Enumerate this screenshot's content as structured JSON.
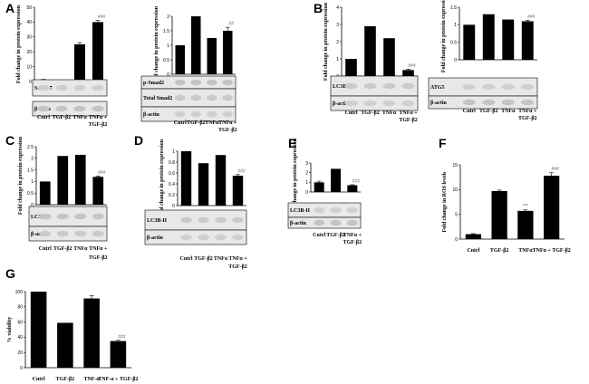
{
  "chart_data": [
    {
      "id": "A1",
      "panel_label": "A",
      "type": "bar",
      "ylabel": "Fold change in protein expression",
      "ylim": [
        0,
        50
      ],
      "yticks": [
        0,
        10,
        20,
        30,
        40,
        50
      ],
      "categories": [
        "Cntrl",
        "TGF-β2",
        "TNFα",
        "TNFα + TGF-β2"
      ],
      "values": [
        1,
        0,
        25,
        40
      ],
      "errors": [
        0.5,
        0,
        1.2,
        1.2
      ],
      "annotations": [
        "",
        "",
        "",
        "###"
      ],
      "blot_labels": [
        "Smad-7",
        "β-actin"
      ]
    },
    {
      "id": "A2",
      "panel_label": "",
      "type": "bar",
      "ylabel": "Fold change in protein expression",
      "ylim": [
        0,
        2
      ],
      "yticks": [
        0,
        0.5,
        1.0,
        1.5,
        2.0
      ],
      "categories": [
        "Cntrl",
        "TGF-β2",
        "TNFα",
        "TNFα + TGF-β2"
      ],
      "values": [
        1.0,
        2.0,
        1.25,
        1.5
      ],
      "errors": [
        0,
        0,
        0,
        0.12
      ],
      "annotations": [
        "",
        "",
        "",
        "##"
      ],
      "blot_labels": [
        "p-Smad2",
        "Total Smad2",
        "β-actin"
      ]
    },
    {
      "id": "B1",
      "panel_label": "B",
      "type": "bar",
      "ylabel": "Fold change in protein expression",
      "ylim": [
        0,
        4
      ],
      "yticks": [
        0,
        1,
        2,
        3,
        4
      ],
      "categories": [
        "Cntrl",
        "TGF-β2",
        "TNFα",
        "TNFα + TGF-β2"
      ],
      "values": [
        1.0,
        2.9,
        2.2,
        0.35
      ],
      "errors": [
        0,
        0,
        0,
        0.05
      ],
      "annotations": [
        "",
        "",
        "",
        "###"
      ],
      "blot_labels": [
        "LC3B-II",
        "β-actin"
      ]
    },
    {
      "id": "B2",
      "panel_label": "",
      "type": "bar",
      "ylabel": "Fold change in protein expression",
      "ylim": [
        0,
        1.5
      ],
      "yticks": [
        0,
        0.5,
        1.0,
        1.5
      ],
      "categories": [
        "Cntrl",
        "TGF-β2",
        "TNFα",
        "TNFα + TGF-β2"
      ],
      "values": [
        1.0,
        1.3,
        1.15,
        1.1
      ],
      "errors": [
        0,
        0,
        0,
        0.03
      ],
      "annotations": [
        "",
        "",
        "",
        "###"
      ],
      "blot_labels": [
        "ATG5",
        "β-actin"
      ]
    },
    {
      "id": "C",
      "panel_label": "C",
      "type": "bar",
      "ylabel": "Fold change in protein expression",
      "ylim": [
        0,
        2.5
      ],
      "yticks": [
        0,
        0.5,
        1.0,
        1.5,
        2.0,
        2.5
      ],
      "categories": [
        "Cntrl",
        "TGF-β2",
        "TNFα",
        "TNFα + TGF-β2"
      ],
      "values": [
        1.0,
        2.1,
        2.15,
        1.2
      ],
      "errors": [
        0,
        0,
        0,
        0.04
      ],
      "annotations": [
        "",
        "",
        "",
        "###"
      ],
      "blot_labels": [
        "LC3B-II",
        "β-actin"
      ]
    },
    {
      "id": "D",
      "panel_label": "D",
      "type": "bar",
      "ylabel": "Fold change in protein expression",
      "ylim": [
        0,
        1.0
      ],
      "yticks": [
        0,
        0.2,
        0.4,
        0.6,
        0.8,
        1.0
      ],
      "categories": [
        "Cntrl",
        "TGF-β2",
        "TNFα",
        "TNFα + TGF-β2"
      ],
      "values": [
        1.0,
        0.78,
        0.93,
        0.55
      ],
      "errors": [
        0,
        0,
        0,
        0.02
      ],
      "annotations": [
        "",
        "",
        "",
        "###"
      ],
      "blot_labels": [
        "LC3B-II",
        "β-actin"
      ]
    },
    {
      "id": "E",
      "panel_label": "E",
      "type": "bar",
      "ylabel": "Fold change in protein expression",
      "ylim": [
        0,
        3
      ],
      "yticks": [
        0,
        1,
        2,
        3
      ],
      "categories": [
        "Cntrl",
        "TGF-β2",
        "TNFα + TGF-β2"
      ],
      "values": [
        1.0,
        2.4,
        0.7
      ],
      "errors": [
        0.12,
        0,
        0.05
      ],
      "annotations": [
        "",
        "",
        "###"
      ],
      "blot_labels": [
        "LC3B-II",
        "β-actin"
      ]
    },
    {
      "id": "F",
      "panel_label": "F",
      "type": "bar",
      "ylabel": "Fold change in ROS levels",
      "ylim": [
        0,
        15
      ],
      "yticks": [
        0,
        5,
        10,
        15
      ],
      "categories": [
        "Cntrl",
        "TGF-β2",
        "TNFα",
        "TNFα + TGF-β2"
      ],
      "values": [
        1.0,
        9.7,
        5.7,
        12.8
      ],
      "errors": [
        0.1,
        0.2,
        0.2,
        0.6
      ],
      "annotations": [
        "",
        "",
        "***",
        "###"
      ],
      "blot_labels": []
    },
    {
      "id": "G",
      "panel_label": "G",
      "type": "bar",
      "ylabel": "% viability",
      "ylim": [
        0,
        100
      ],
      "yticks": [
        0,
        20,
        40,
        60,
        80,
        100
      ],
      "categories": [
        "Cntrl",
        "TGF-β2",
        "TNF-α",
        "TNF-α + TGF-β2"
      ],
      "values": [
        100,
        59,
        91,
        35
      ],
      "errors": [
        0,
        0,
        4,
        1
      ],
      "annotations": [
        "",
        "",
        "",
        "###"
      ],
      "blot_labels": []
    }
  ]
}
